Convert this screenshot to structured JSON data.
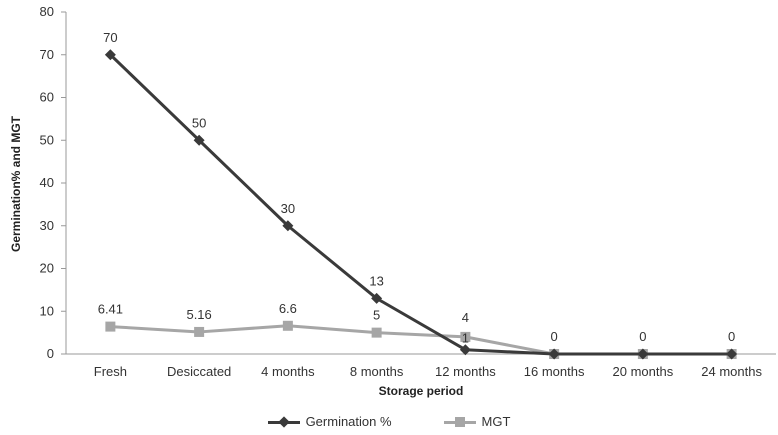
{
  "chart_data": {
    "type": "line",
    "categories": [
      "Fresh",
      "Desiccated",
      "4 months",
      "8 months",
      "12 months",
      "16 months",
      "20 months",
      "24 months"
    ],
    "xlabel": "Storage period",
    "ylabel": "Germination% and MGT",
    "ylim": [
      0,
      80
    ],
    "yticks": [
      0,
      10,
      20,
      30,
      40,
      50,
      60,
      70,
      80
    ],
    "grid": false,
    "legend_position": "bottom",
    "series": [
      {
        "name": "Germination %",
        "values": [
          70,
          50,
          30,
          13,
          1,
          0,
          0,
          0
        ],
        "labels": [
          "70",
          "50",
          "30",
          "13",
          "1",
          "0",
          "0",
          "0"
        ],
        "color": "#3a3a3a",
        "marker": "diamond"
      },
      {
        "name": "MGT",
        "values": [
          6.41,
          5.16,
          6.6,
          5,
          4,
          0,
          0,
          0
        ],
        "labels": [
          "6.41",
          "5.16",
          "6.6",
          "5",
          "4",
          "",
          "",
          ""
        ],
        "color": "#a6a6a6",
        "marker": "square"
      }
    ]
  }
}
